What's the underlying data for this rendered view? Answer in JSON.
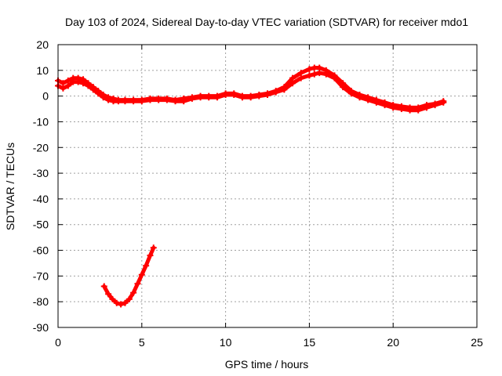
{
  "chart_data": {
    "type": "line",
    "title": "Day 103 of 2024, Sidereal Day-to-day VTEC variation (SDTVAR) for receiver mdo1",
    "xlabel": "GPS time / hours",
    "ylabel": "SDTVAR / TECUs",
    "xlim": [
      0,
      25
    ],
    "ylim": [
      -90,
      20
    ],
    "xticks": [
      0,
      5,
      10,
      15,
      20,
      25
    ],
    "yticks": [
      20,
      10,
      0,
      -10,
      -20,
      -30,
      -40,
      -50,
      -60,
      -70,
      -80,
      -90
    ],
    "grid": true,
    "color": "#ff0000",
    "series": [
      {
        "name": "sdtvar-main-upper",
        "x": [
          0.0,
          0.3,
          0.6,
          0.9,
          1.2,
          1.5,
          1.8,
          2.1,
          2.4,
          2.7,
          3.0,
          3.3,
          3.6,
          4.0,
          4.5,
          5.0,
          5.5,
          6.0,
          6.5,
          7.0,
          7.5,
          8.0,
          8.5,
          9.0,
          9.5,
          10.0,
          10.5,
          11.0,
          11.5,
          12.0,
          12.5,
          13.0,
          13.5,
          14.0,
          14.5,
          15.0,
          15.3,
          15.6,
          16.0,
          16.5,
          17.0,
          17.5,
          18.0,
          18.5,
          19.0,
          19.5,
          20.0,
          20.5,
          21.0,
          21.5,
          22.0,
          22.5,
          23.0
        ],
        "y": [
          6,
          5,
          6,
          7,
          7,
          6.5,
          5,
          3.5,
          2,
          0.5,
          -0.5,
          -1,
          -1.5,
          -1.5,
          -1.5,
          -1.5,
          -1,
          -1,
          -1,
          -1.5,
          -1,
          -0.5,
          0,
          0,
          0,
          1,
          1,
          0,
          0,
          0.5,
          1,
          2,
          3.5,
          7,
          9,
          10.5,
          11,
          11,
          10,
          8,
          5,
          2,
          0.5,
          -0.5,
          -1.5,
          -2.5,
          -3.5,
          -4,
          -4.5,
          -4.5,
          -3.5,
          -3,
          -2
        ]
      },
      {
        "name": "sdtvar-main-lower",
        "x": [
          0.0,
          0.3,
          0.6,
          0.9,
          1.2,
          1.5,
          1.8,
          2.1,
          2.4,
          2.7,
          3.0,
          3.3,
          3.6,
          4.0,
          4.5,
          5.0,
          5.5,
          6.0,
          6.5,
          7.0,
          7.5,
          8.0,
          8.5,
          9.0,
          9.5,
          10.0,
          10.5,
          11.0,
          11.5,
          12.0,
          12.5,
          13.0,
          13.5,
          14.0,
          14.5,
          15.0,
          15.3,
          15.6,
          16.0,
          16.5,
          17.0,
          17.5,
          18.0,
          18.5,
          19.0,
          19.5,
          20.0,
          20.5,
          21.0,
          21.5,
          22.0,
          22.5,
          23.0
        ],
        "y": [
          4,
          3,
          4,
          5.5,
          5.5,
          5,
          4,
          2.5,
          1,
          -0.5,
          -1.5,
          -2,
          -2,
          -2,
          -2,
          -2,
          -1.5,
          -1.5,
          -1.5,
          -2,
          -2,
          -1,
          -0.5,
          -0.5,
          -0.5,
          0.5,
          0.5,
          -0.5,
          -0.5,
          0,
          0.5,
          1.5,
          2.5,
          5,
          7,
          8,
          8.5,
          9,
          8.5,
          7,
          3.5,
          1,
          -0.5,
          -1.5,
          -2.5,
          -3.5,
          -4.5,
          -5,
          -5.5,
          -5.5,
          -4.5,
          -3.5,
          -2.5
        ]
      },
      {
        "name": "sdtvar-early-segment",
        "x": [
          2.75,
          3.0,
          3.25,
          3.5,
          3.75,
          4.0,
          4.25,
          4.5,
          4.75,
          5.0,
          5.25,
          5.5,
          5.7
        ],
        "y": [
          -74,
          -77,
          -79,
          -80.5,
          -81,
          -80.5,
          -79,
          -76.5,
          -73,
          -69.5,
          -66,
          -62,
          -59
        ]
      }
    ]
  }
}
